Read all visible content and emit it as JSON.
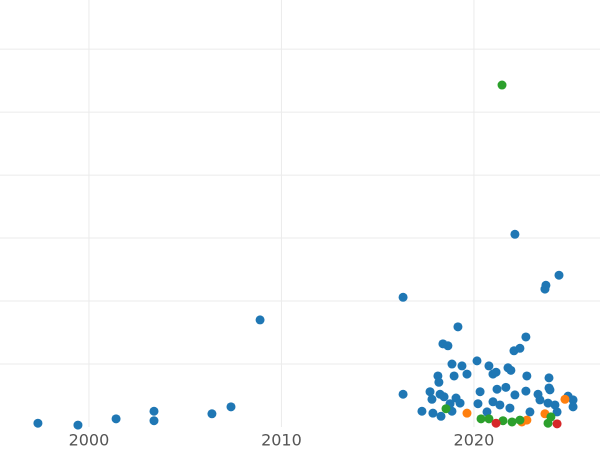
{
  "chart_data": {
    "type": "scatter",
    "xlim": [
      1995.38,
      2026.55
    ],
    "xticks": [
      2000,
      2010,
      2020
    ],
    "ylim": [
      0,
      6.78
    ],
    "yticks": [
      1,
      2,
      3,
      4,
      5,
      6
    ],
    "grid": true,
    "series": [
      {
        "color": "#1f77b4",
        "x": [
          1997.35,
          1999.43,
          2001.41,
          2003.38,
          2003.38,
          2006.39,
          2007.38,
          2008.89,
          2016.32,
          2016.32,
          2019.17,
          2018.39,
          2018.65,
          2018.86,
          2019.38,
          2020.16,
          2018.13,
          2018.18,
          2018.97,
          2019.64,
          2020.78,
          2020.99,
          2021.15,
          2021.77,
          2021.92,
          2022.13,
          2022.08,
          2022.39,
          2022.7,
          2022.75,
          2023.69,
          2023.74,
          2024.42,
          2023.9,
          2023.9,
          2023.95,
          2017.72,
          2018.24,
          2017.82,
          2018.45,
          2017.3,
          2017.87,
          2018.29,
          2018.86,
          2019.07,
          2019.28,
          2018.76,
          2020.32,
          2020.21,
          2020.68,
          2021.2,
          2020.99,
          2021.35,
          2021.66,
          2022.13,
          2021.87,
          2022.7,
          2022.91,
          2023.33,
          2023.43,
          2023.85,
          2024.21,
          2024.32,
          2024.89,
          2025.15,
          2025.15
        ],
        "values": [
          0.06,
          0.03,
          0.13,
          0.25,
          0.1,
          0.21,
          0.32,
          1.7,
          2.06,
          0.52,
          1.59,
          1.32,
          1.29,
          1.0,
          0.97,
          1.05,
          0.81,
          0.71,
          0.81,
          0.84,
          0.97,
          0.84,
          0.87,
          0.94,
          0.9,
          3.06,
          1.21,
          1.25,
          1.43,
          0.81,
          2.19,
          2.25,
          2.41,
          0.78,
          0.62,
          0.59,
          0.56,
          0.52,
          0.44,
          0.48,
          0.25,
          0.22,
          0.17,
          0.25,
          0.46,
          0.38,
          0.37,
          0.56,
          0.37,
          0.24,
          0.6,
          0.4,
          0.35,
          0.63,
          0.51,
          0.3,
          0.57,
          0.24,
          0.52,
          0.43,
          0.38,
          0.35,
          0.24,
          0.49,
          0.43,
          0.32
        ]
      },
      {
        "color": "#ff7f0e",
        "x": [
          2019.64,
          2022.75,
          2023.69,
          2024.73,
          2022.49
        ],
        "values": [
          0.22,
          0.11,
          0.21,
          0.44,
          0.08
        ]
      },
      {
        "color": "#2ca02c",
        "x": [
          2021.46,
          2018.55,
          2020.37,
          2020.78,
          2021.51,
          2021.98,
          2022.39,
          2024.0,
          2023.85
        ],
        "values": [
          5.43,
          0.29,
          0.13,
          0.13,
          0.1,
          0.08,
          0.11,
          0.16,
          0.06
        ]
      },
      {
        "color": "#d62728",
        "x": [
          2021.15,
          2024.32
        ],
        "values": [
          0.06,
          0.05
        ]
      }
    ]
  }
}
